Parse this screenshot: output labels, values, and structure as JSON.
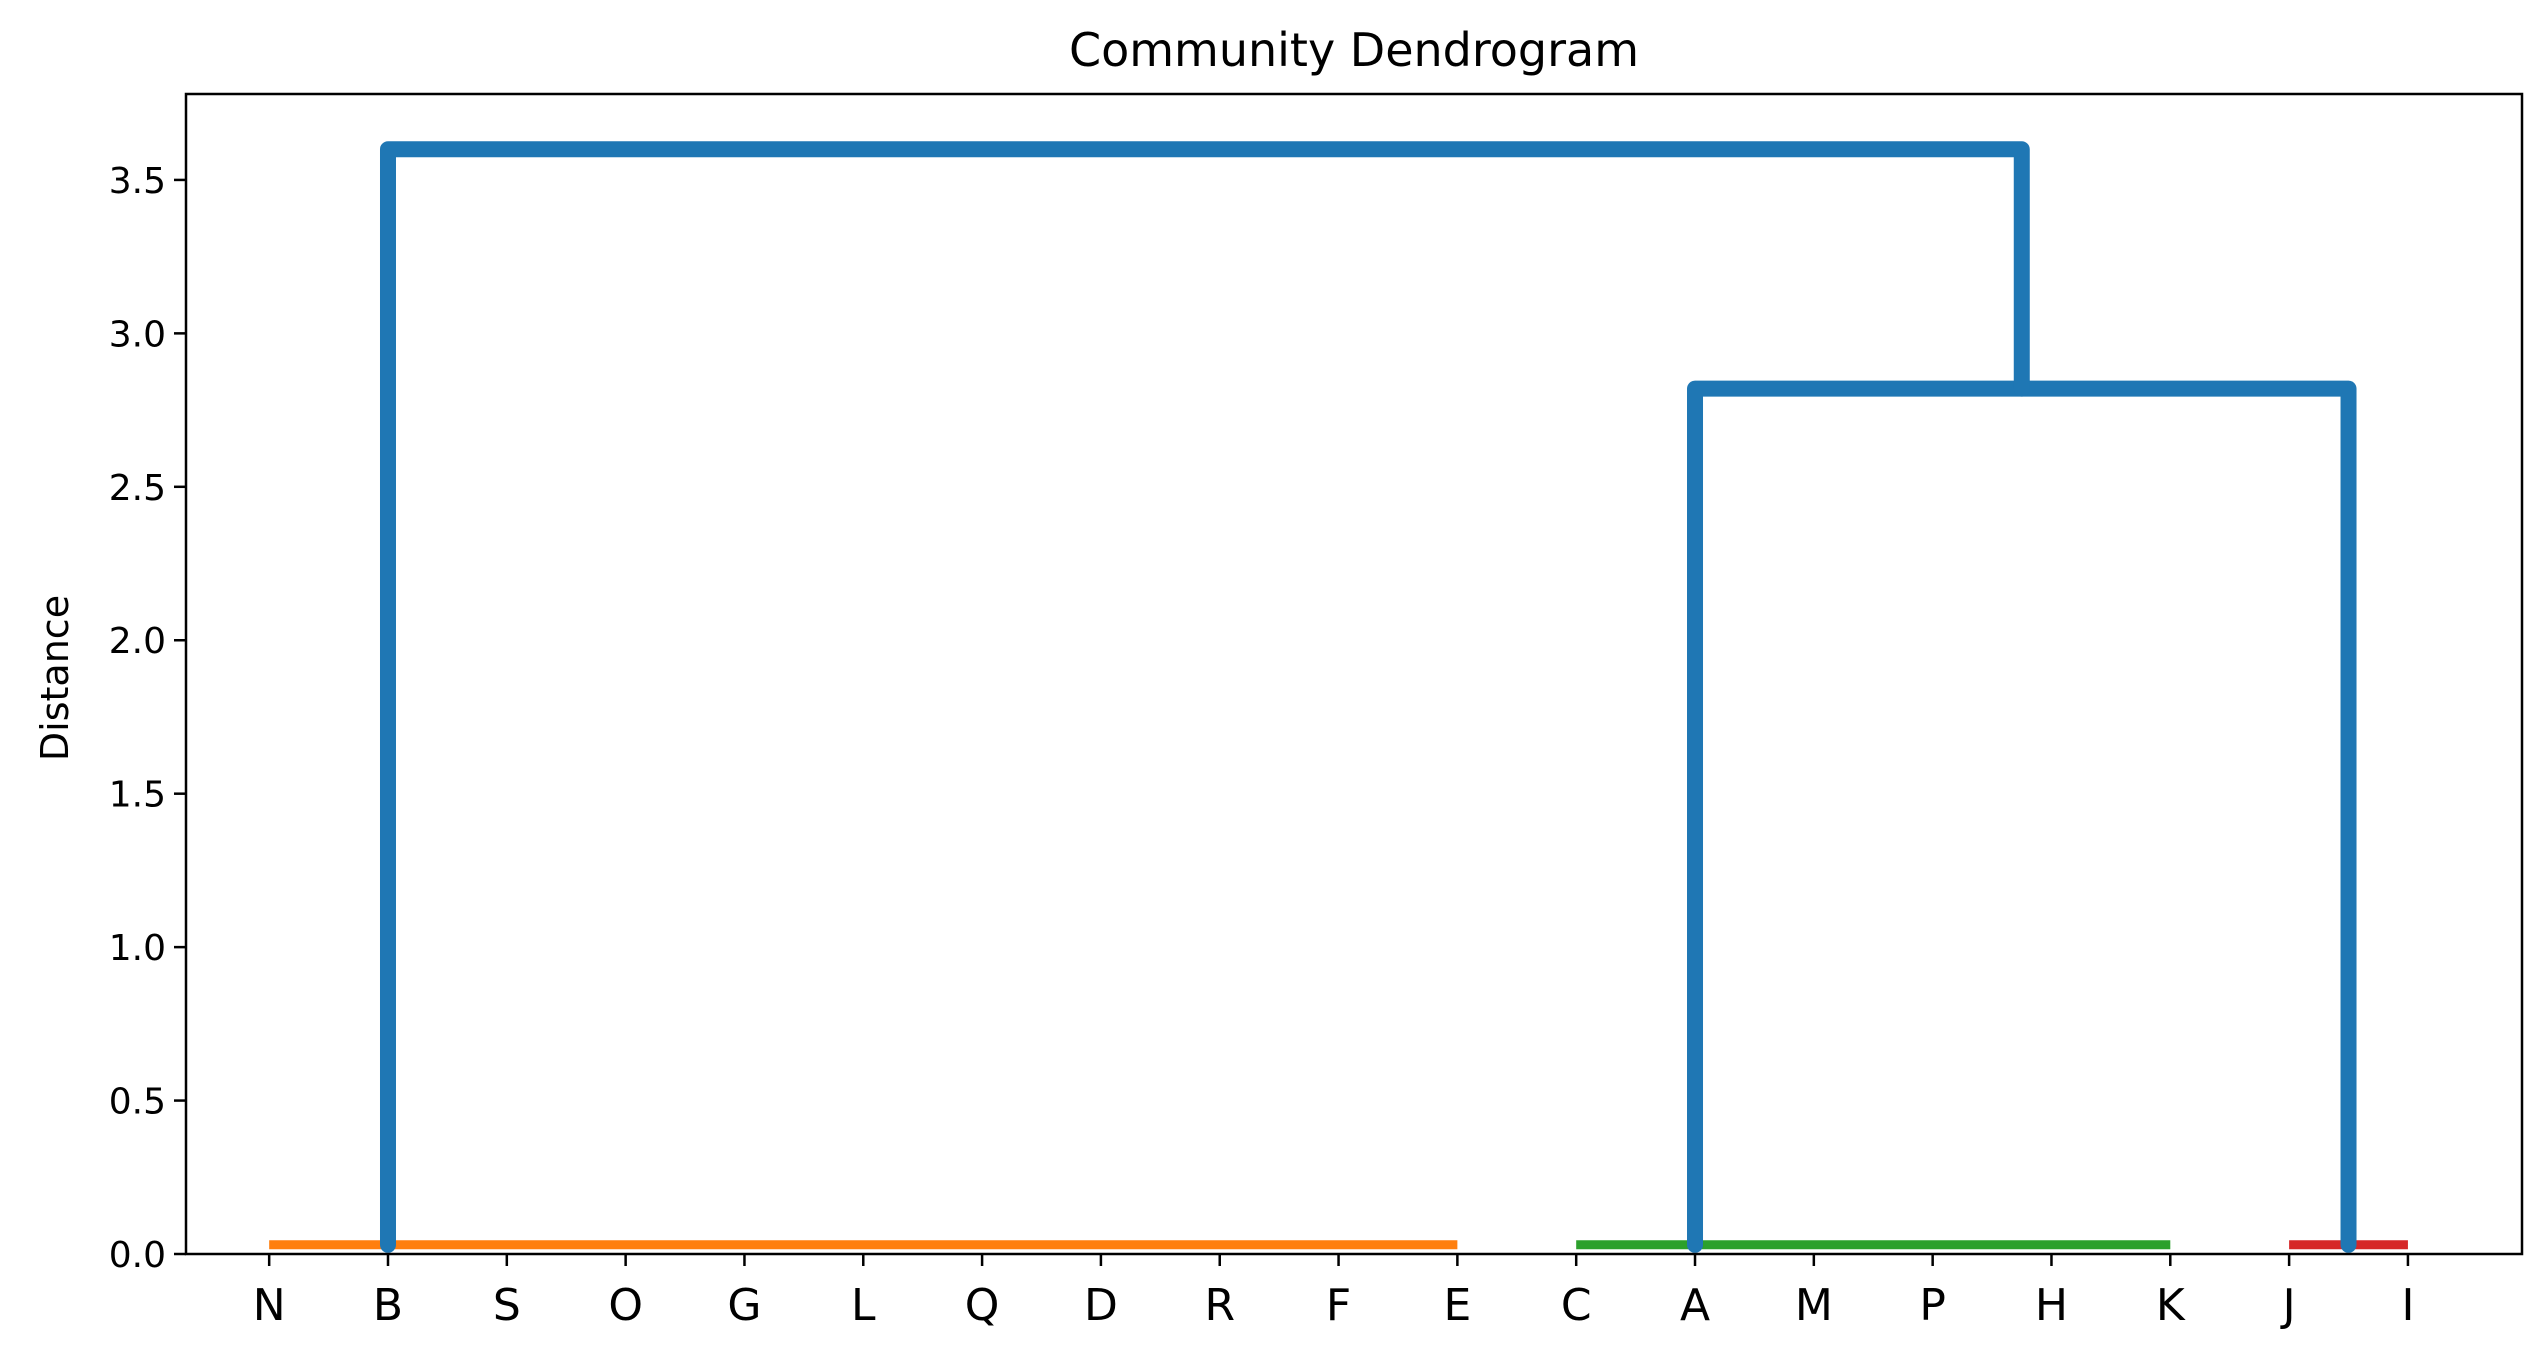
{
  "chart_data": {
    "type": "dendrogram",
    "title": "Community Dendrogram",
    "xlabel": "",
    "ylabel": "Distance",
    "ylim": [
      0,
      3.78
    ],
    "yticks": [
      0.0,
      0.5,
      1.0,
      1.5,
      2.0,
      2.5,
      3.0,
      3.5
    ],
    "ytick_labels": [
      "0.0",
      "0.5",
      "1.0",
      "1.5",
      "2.0",
      "2.5",
      "3.0",
      "3.5"
    ],
    "leaves": [
      "N",
      "B",
      "S",
      "O",
      "G",
      "L",
      "Q",
      "D",
      "R",
      "F",
      "E",
      "C",
      "A",
      "M",
      "P",
      "H",
      "K",
      "J",
      "I"
    ],
    "clusters": [
      {
        "color": "#ff7f0e",
        "leaves": [
          "N",
          "B",
          "S",
          "O",
          "G",
          "L",
          "Q",
          "D",
          "R",
          "F",
          "E"
        ],
        "height": 0.03
      },
      {
        "color": "#2ca02c",
        "leaves": [
          "C",
          "A",
          "M",
          "P",
          "H",
          "K"
        ],
        "height": 0.03
      },
      {
        "color": "#d62728",
        "leaves": [
          "J",
          "I"
        ],
        "height": 0.03
      }
    ],
    "links": [
      {
        "left_x": 12.0,
        "right_x": 17.5,
        "height": 2.82,
        "left_child_height": 0.03,
        "right_child_height": 0.03,
        "color": "#1f77b4"
      },
      {
        "left_x": 1.0,
        "right_x": 14.75,
        "height": 3.6,
        "left_child_height": 0.03,
        "right_child_height": 2.82,
        "color": "#1f77b4"
      }
    ],
    "grid": false,
    "legend": "none"
  }
}
